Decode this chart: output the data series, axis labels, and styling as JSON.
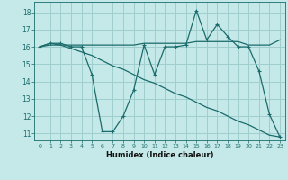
{
  "xlabel": "Humidex (Indice chaleur)",
  "bg_color": "#c5e8e8",
  "grid_color": "#9fcece",
  "line_color": "#1a6b6b",
  "xlim": [
    -0.5,
    23.5
  ],
  "ylim": [
    10.6,
    18.6
  ],
  "yticks": [
    11,
    12,
    13,
    14,
    15,
    16,
    17,
    18
  ],
  "xticks": [
    0,
    1,
    2,
    3,
    4,
    5,
    6,
    7,
    8,
    9,
    10,
    11,
    12,
    13,
    14,
    15,
    16,
    17,
    18,
    19,
    20,
    21,
    22,
    23
  ],
  "line1_x": [
    0,
    1,
    2,
    3,
    4,
    5,
    6,
    7,
    8,
    9,
    10,
    11,
    12,
    13,
    14,
    15,
    16,
    17,
    18,
    19,
    20,
    21,
    22,
    23
  ],
  "line1_y": [
    16.0,
    16.2,
    16.2,
    16.0,
    16.0,
    14.4,
    11.1,
    11.1,
    12.0,
    13.5,
    16.1,
    14.4,
    16.0,
    16.0,
    16.1,
    18.1,
    16.4,
    17.3,
    16.6,
    16.0,
    16.0,
    14.6,
    12.1,
    10.8
  ],
  "line2_x": [
    0,
    1,
    2,
    3,
    4,
    5,
    6,
    7,
    8,
    9,
    10,
    11,
    12,
    13,
    14,
    15,
    16,
    17,
    18,
    19,
    20,
    21,
    22,
    23
  ],
  "line2_y": [
    16.0,
    16.2,
    16.1,
    15.9,
    15.7,
    15.5,
    15.2,
    14.9,
    14.7,
    14.4,
    14.1,
    13.9,
    13.6,
    13.3,
    13.1,
    12.8,
    12.5,
    12.3,
    12.0,
    11.7,
    11.5,
    11.2,
    10.9,
    10.8
  ],
  "line3_x": [
    0,
    1,
    2,
    3,
    4,
    5,
    6,
    7,
    8,
    9,
    10,
    11,
    12,
    13,
    14,
    15,
    16,
    17,
    18,
    19,
    20,
    21,
    22,
    23
  ],
  "line3_y": [
    16.0,
    16.1,
    16.1,
    16.1,
    16.1,
    16.1,
    16.1,
    16.1,
    16.1,
    16.1,
    16.2,
    16.2,
    16.2,
    16.2,
    16.2,
    16.3,
    16.3,
    16.3,
    16.3,
    16.3,
    16.1,
    16.1,
    16.1,
    16.4
  ]
}
